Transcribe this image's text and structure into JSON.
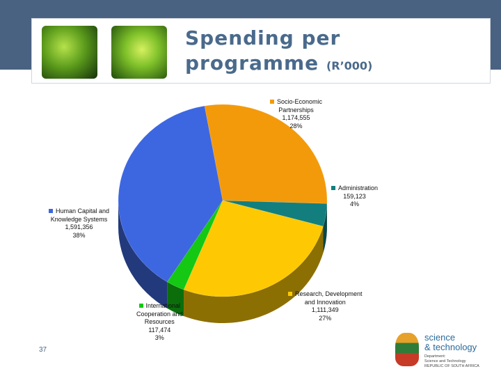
{
  "header": {
    "title_line1": "Spending per",
    "title_line2": "programme",
    "title_unit": "(R’000)"
  },
  "page_number": "37",
  "logo": {
    "line1": "science",
    "line2": "& technology",
    "sub1": "Department:",
    "sub2": "Science and Technology",
    "sub3": "REPUBLIC OF SOUTH AFRICA"
  },
  "chart_data": {
    "type": "pie",
    "style": "3d",
    "slices": [
      {
        "label_lines": [
          "Socio-Economic",
          "Partnerships"
        ],
        "value": "1,174,555",
        "percent": "28%",
        "v": 1174555,
        "color": "#f39a0b"
      },
      {
        "label_lines": [
          "Administration"
        ],
        "value": "159,123",
        "percent": "4%",
        "v": 159123,
        "color": "#127f7e"
      },
      {
        "label_lines": [
          "Research, Development",
          "and Innovation"
        ],
        "value": "1,111,349",
        "percent": "27%",
        "v": 1111349,
        "color": "#fec903"
      },
      {
        "label_lines": [
          "International",
          "Cooperation and",
          "Resources"
        ],
        "value": "117,474",
        "percent": "3%",
        "v": 117474,
        "color": "#14c814"
      },
      {
        "label_lines": [
          "Human Capital and",
          "Knowledge Systems"
        ],
        "value": "1,591,356",
        "percent": "38%",
        "v": 1591356,
        "color": "#3d67e0"
      }
    ]
  }
}
